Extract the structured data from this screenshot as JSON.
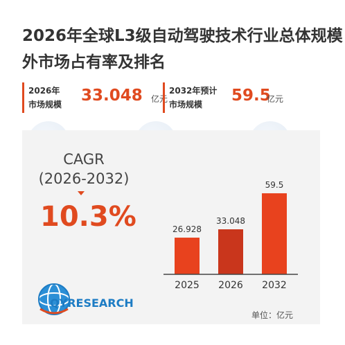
{
  "header": {
    "title_line1": "2026年全球L3级自动驾驶技术行业总体规模",
    "title_line2": "外市场占有率及排名"
  },
  "metrics": [
    {
      "label_line1": "2026年",
      "label_line2": "市场规模",
      "value": "33.048",
      "unit": "亿元"
    },
    {
      "label_line1": "2032年预计",
      "label_line2": "市场规模",
      "value": "59.5",
      "unit": "亿元"
    }
  ],
  "cagr": {
    "label": "CAGR",
    "period": "(2026-2032)",
    "value": "10.3%"
  },
  "logo": {
    "text": "QYRESEARCH",
    "icon": "qyresearch-globe-icon"
  },
  "unit_note": "单位：亿元",
  "colors": {
    "accent": "#e04a1f",
    "bar_dark": "#c9361c",
    "bar_light": "#e8421e",
    "panel": "#f3f3f3",
    "logo_blue": "#1d7cc4"
  },
  "chart_data": {
    "type": "bar",
    "categories": [
      "2025",
      "2026",
      "2032"
    ],
    "values": [
      26.928,
      33.048,
      59.5
    ],
    "value_labels": [
      "26.928",
      "33.048",
      "59.5"
    ],
    "ylim": [
      0,
      60
    ],
    "grid": false,
    "legend": "none",
    "xlabel": "",
    "ylabel": ""
  }
}
